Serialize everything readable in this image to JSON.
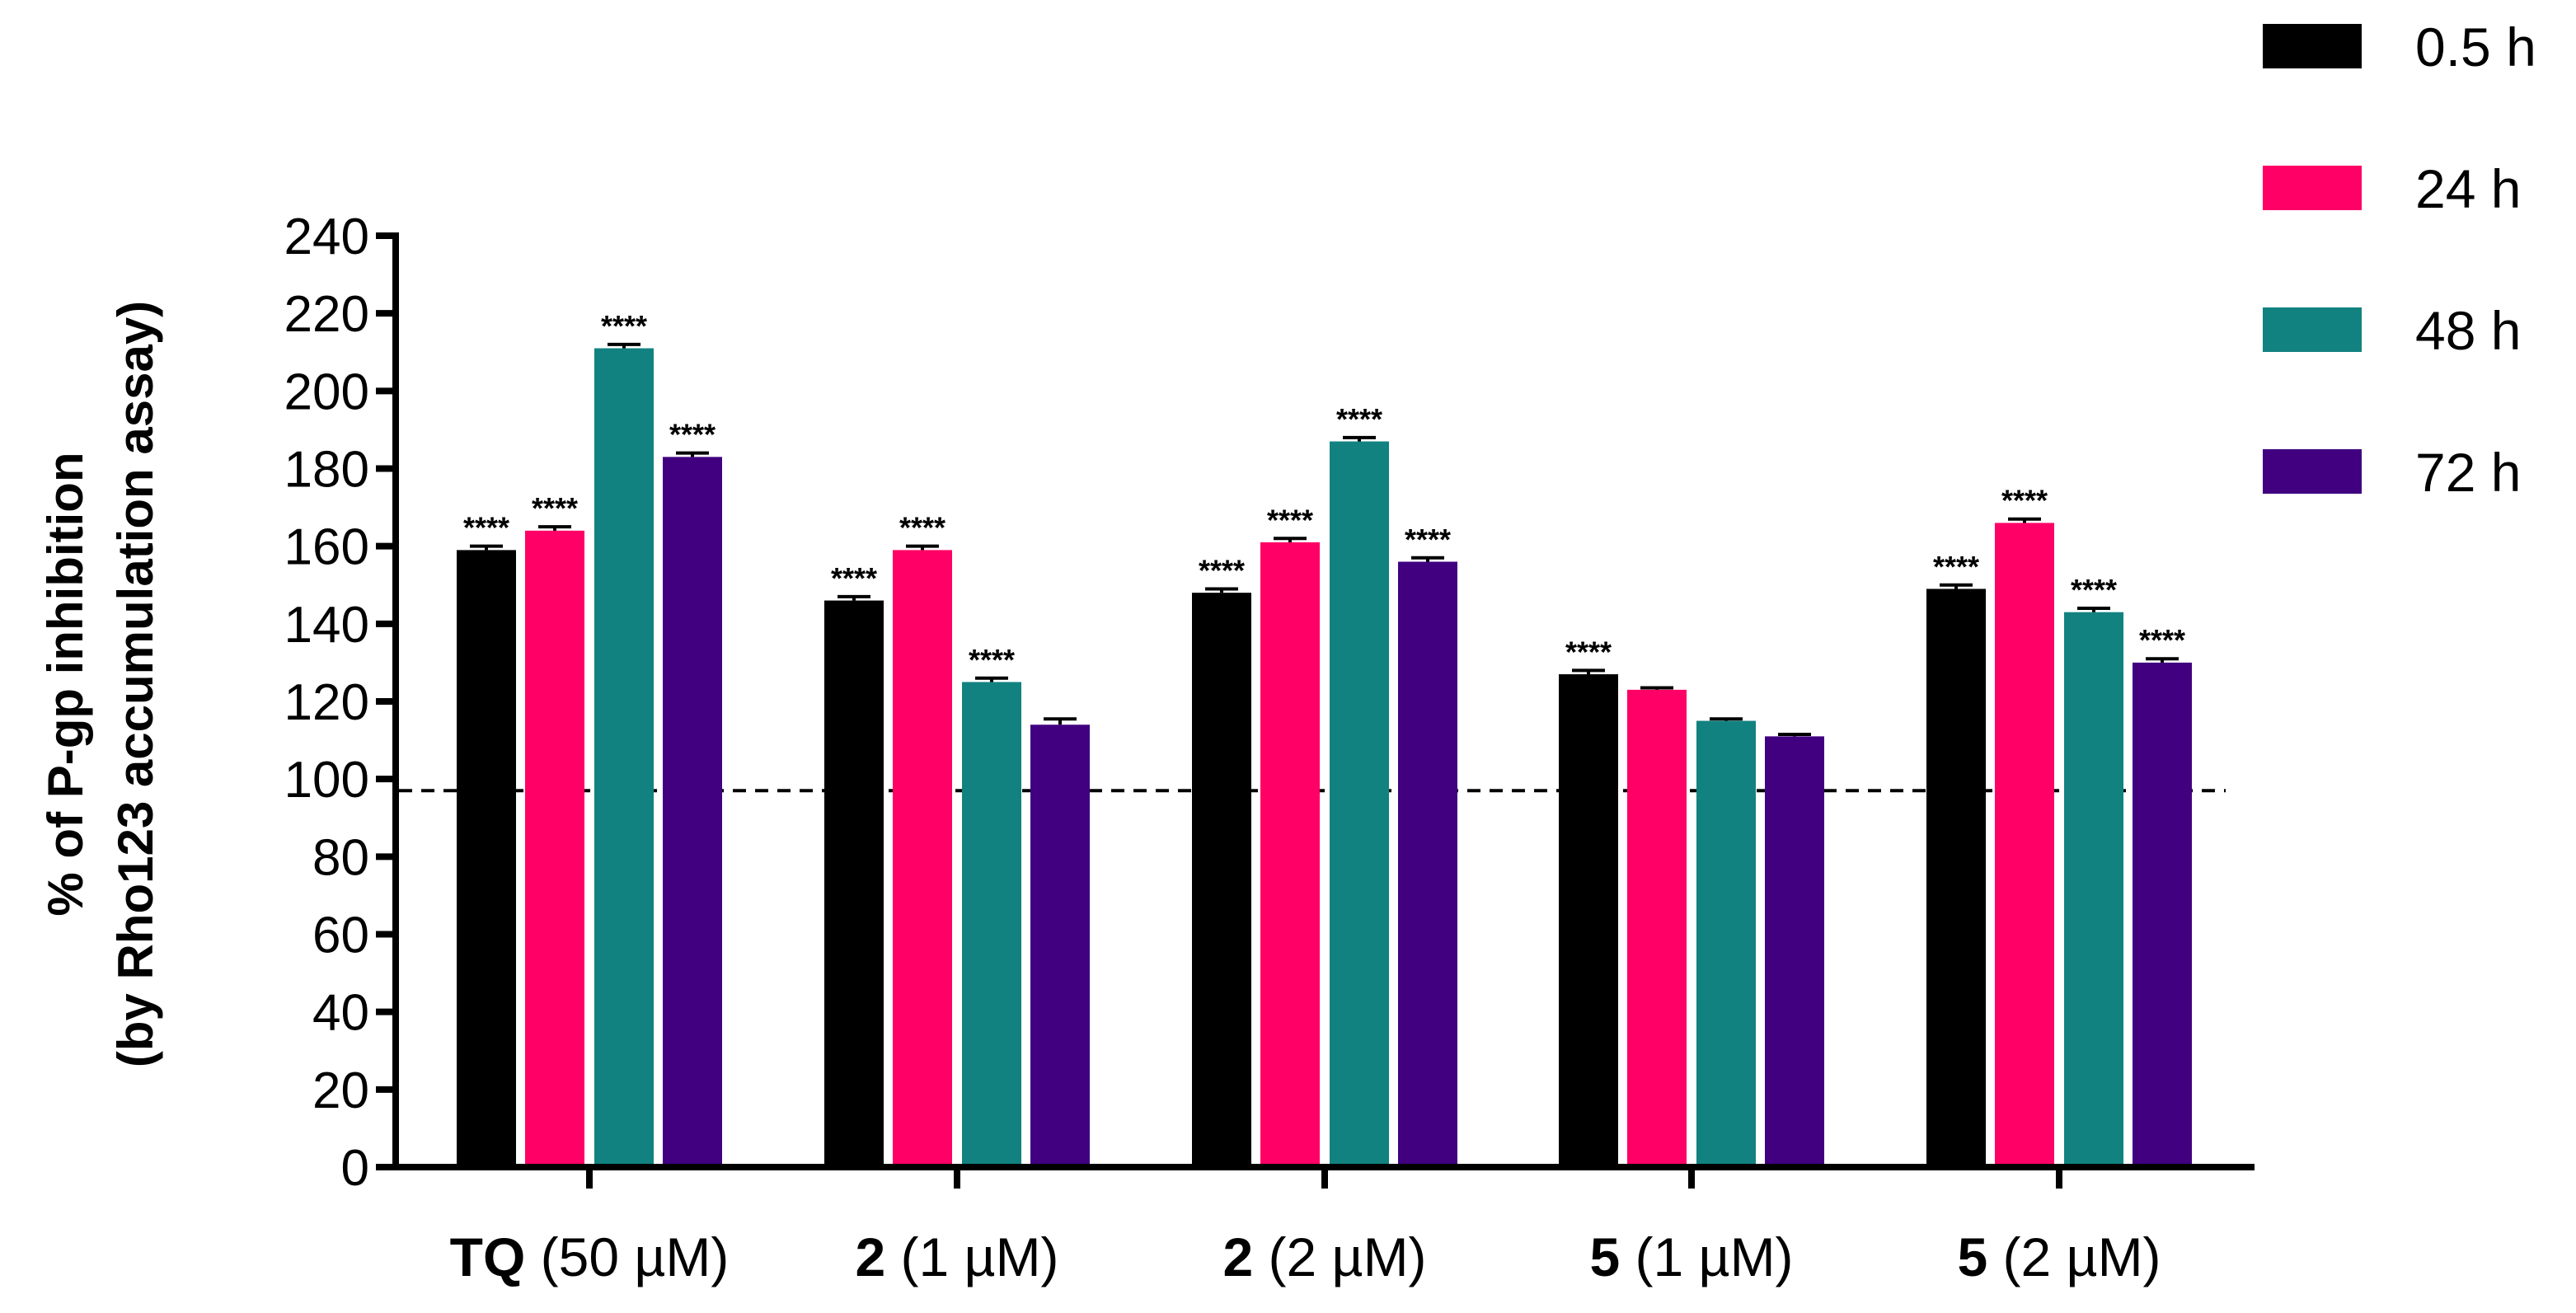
{
  "chart_data": {
    "type": "bar",
    "ylabel_line1": "% of P-gp inhibition",
    "ylabel_line2": "(by Rho123 accumulation assay)",
    "ylim": [
      0,
      240
    ],
    "yticks": [
      0,
      20,
      40,
      60,
      80,
      100,
      120,
      140,
      160,
      180,
      200,
      220,
      240
    ],
    "ytick_labels": [
      "0",
      "20",
      "40",
      "60",
      "80",
      "100",
      "120",
      "140",
      "160",
      "180",
      "200",
      "220",
      "240"
    ],
    "reference_line": 97,
    "legend_position": "top-right",
    "significance_marker": "****",
    "categories": [
      {
        "bold": "TQ",
        "rest": " (50 µM)"
      },
      {
        "bold": "2",
        "rest": " (1 µM)"
      },
      {
        "bold": "2",
        "rest": " (2 µM)"
      },
      {
        "bold": "5",
        "rest": " (1 µM)"
      },
      {
        "bold": "5",
        "rest": " (2 µM)"
      }
    ],
    "series": [
      {
        "name": "0.5 h",
        "color": "#000000",
        "values": [
          159,
          146,
          148,
          127,
          149
        ],
        "errors": [
          1,
          1,
          1,
          1,
          1
        ],
        "significant": [
          true,
          true,
          true,
          true,
          true
        ]
      },
      {
        "name": "24 h",
        "color": "#ff0066",
        "values": [
          164,
          159,
          161,
          123,
          166
        ],
        "errors": [
          1,
          1,
          1,
          0.5,
          1
        ],
        "significant": [
          true,
          true,
          true,
          false,
          true
        ]
      },
      {
        "name": "48 h",
        "color": "#128280",
        "values": [
          211,
          125,
          187,
          115,
          143
        ],
        "errors": [
          1,
          1,
          1,
          0.5,
          1
        ],
        "significant": [
          true,
          true,
          true,
          false,
          true
        ]
      },
      {
        "name": "72 h",
        "color": "#400080",
        "values": [
          183,
          114,
          156,
          111,
          130
        ],
        "errors": [
          1,
          1.5,
          1,
          0.5,
          1
        ],
        "significant": [
          true,
          false,
          true,
          false,
          true
        ]
      }
    ]
  }
}
